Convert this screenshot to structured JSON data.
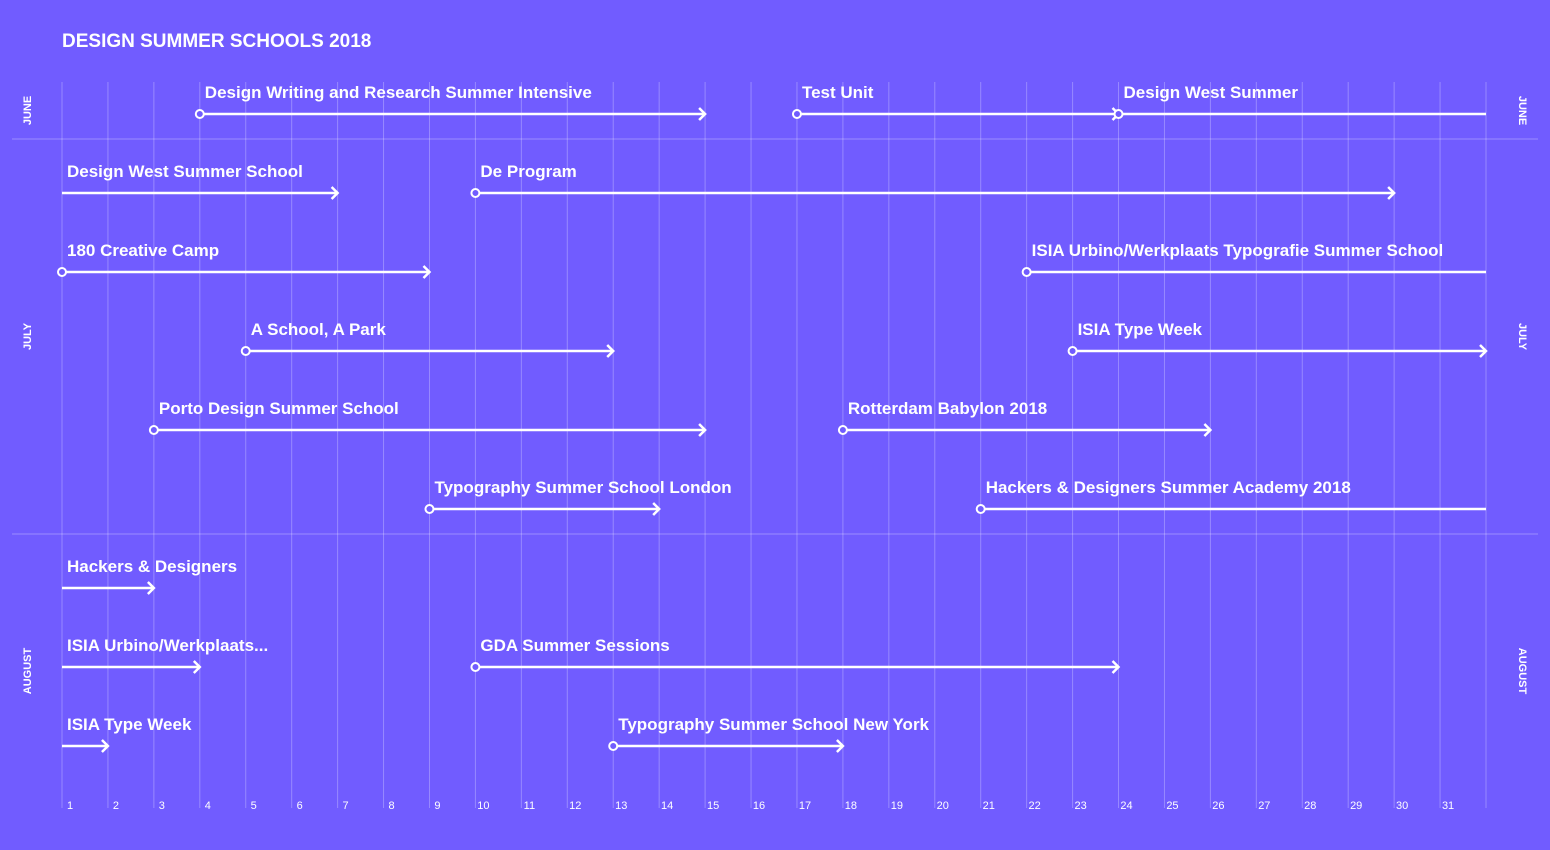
{
  "chart_data": {
    "type": "timeline",
    "title": "DESIGN SUMMER SCHOOLS 2018",
    "xlim": [
      1,
      32
    ],
    "xticks": [
      1,
      2,
      3,
      4,
      5,
      6,
      7,
      8,
      9,
      10,
      11,
      12,
      13,
      14,
      15,
      16,
      17,
      18,
      19,
      20,
      21,
      22,
      23,
      24,
      25,
      26,
      27,
      28,
      29,
      30,
      31
    ],
    "grid": true,
    "color": "#ffffff",
    "background": "#715cff",
    "months": [
      {
        "name": "JUNE",
        "rows": [
          [
            {
              "name": "Design Writing and Research Summer Intensive",
              "start": 4,
              "end": 15
            },
            {
              "name": "Test Unit",
              "start": 17,
              "end": 24
            },
            {
              "name": "Design West Summer",
              "start": 24,
              "end": null
            }
          ]
        ]
      },
      {
        "name": "JULY",
        "rows": [
          [
            {
              "name": "Design West Summer School",
              "start": null,
              "end": 7
            },
            {
              "name": "De Program",
              "start": 10,
              "end": 30
            }
          ],
          [
            {
              "name": "180 Creative Camp",
              "start": 1,
              "end": 9
            },
            {
              "name": "ISIA Urbino/Werkplaats Typografie Summer School",
              "start": 22,
              "end": null
            }
          ],
          [
            {
              "name": "A School, A Park",
              "start": 5,
              "end": 13
            },
            {
              "name": "ISIA Type Week",
              "start": 23,
              "end": 32
            }
          ],
          [
            {
              "name": "Porto Design Summer School",
              "start": 3,
              "end": 15
            },
            {
              "name": "Rotterdam Babylon 2018",
              "start": 18,
              "end": 26
            }
          ],
          [
            {
              "name": "Typography Summer School London",
              "start": 9,
              "end": 14
            },
            {
              "name": "Hackers & Designers Summer Academy 2018",
              "start": 21,
              "end": null
            }
          ]
        ]
      },
      {
        "name": "AUGUST",
        "rows": [
          [
            {
              "name": "Hackers & Designers",
              "start": null,
              "end": 3
            }
          ],
          [
            {
              "name": "ISIA Urbino/Werkplaats...",
              "start": null,
              "end": 4
            },
            {
              "name": "GDA Summer Sessions",
              "start": 10,
              "end": 24
            }
          ],
          [
            {
              "name": "ISIA Type Week",
              "start": null,
              "end": 2
            },
            {
              "name": "Typography Summer School New York",
              "start": 13,
              "end": 18
            }
          ]
        ]
      }
    ]
  }
}
